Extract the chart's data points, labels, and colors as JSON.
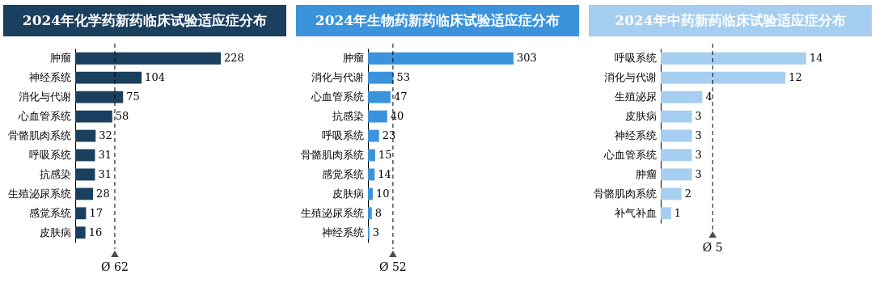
{
  "chart_data": [
    {
      "type": "bar",
      "orientation": "horizontal",
      "title": "2024年化学药新药临床试验适应症分布",
      "categories": [
        "肿瘤",
        "神经系统",
        "消化与代谢",
        "心血管系统",
        "骨骼肌肉系统",
        "呼吸系统",
        "抗感染",
        "生殖泌尿系统",
        "感觉系统",
        "皮肤病"
      ],
      "values": [
        228,
        104,
        75,
        58,
        32,
        31,
        31,
        28,
        17,
        16
      ],
      "color": "#1b3f5e",
      "data_labels": true,
      "ref_lines": [
        {
          "axis": "x",
          "value": 62,
          "label": "Ø 62",
          "line_style": "dashed"
        }
      ]
    },
    {
      "type": "bar",
      "orientation": "horizontal",
      "title": "2024年生物药新药临床试验适应症分布",
      "categories": [
        "肿瘤",
        "消化与代谢",
        "心血管系统",
        "抗感染",
        "呼吸系统",
        "骨骼肌肉系统",
        "感觉系统",
        "皮肤病",
        "生殖泌尿系统",
        "神经系统"
      ],
      "values": [
        303,
        53,
        47,
        40,
        23,
        15,
        14,
        10,
        8,
        3
      ],
      "color": "#3b93db",
      "data_labels": true,
      "ref_lines": [
        {
          "axis": "x",
          "value": 52,
          "label": "Ø 52",
          "line_style": "dashed"
        }
      ]
    },
    {
      "type": "bar",
      "orientation": "horizontal",
      "title": "2024年中药新药临床试验适应症分布",
      "categories": [
        "呼吸系统",
        "消化与代谢",
        "生殖泌尿",
        "皮肤病",
        "神经系统",
        "心血管系统",
        "肿瘤",
        "骨骼肌肉系统",
        "补气补血"
      ],
      "values": [
        14,
        12,
        4,
        3,
        3,
        3,
        3,
        2,
        1
      ],
      "color": "#a5cef0",
      "data_labels": true,
      "ref_lines": [
        {
          "axis": "x",
          "value": 5,
          "label": "Ø 5",
          "line_style": "dashed"
        }
      ]
    }
  ]
}
